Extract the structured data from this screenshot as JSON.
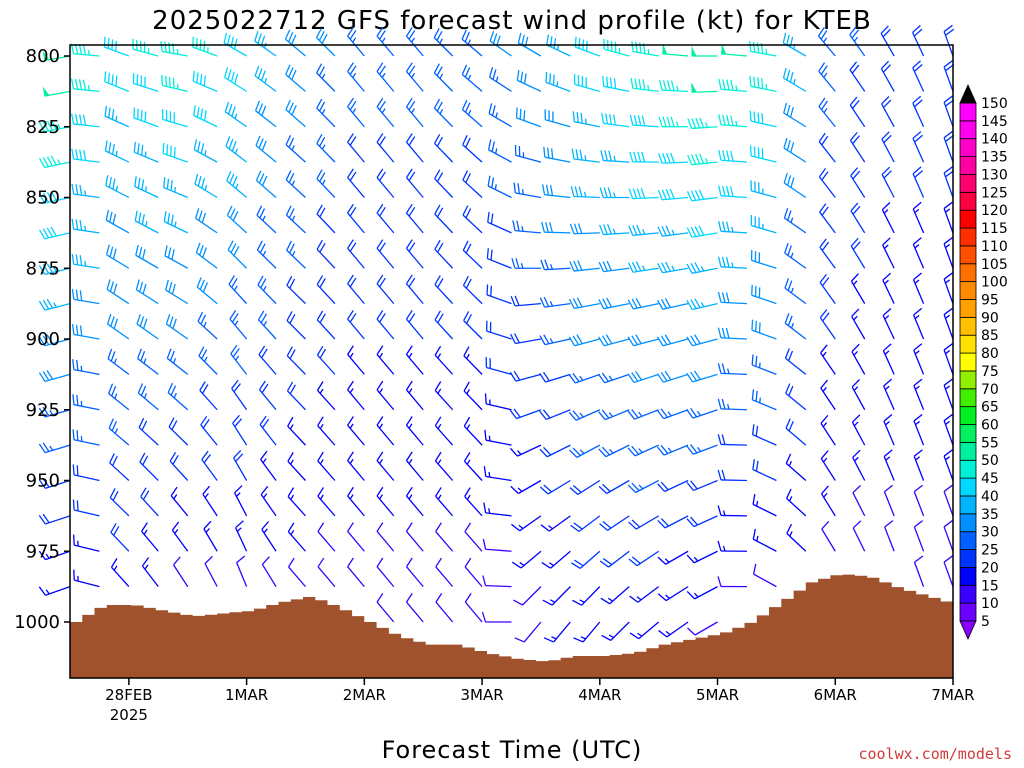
{
  "chart_data": {
    "type": "wind_profile_barbs",
    "title": "2025022712 GFS forecast wind profile (kt) for KTEB",
    "xlabel": "Forecast Time (UTC)",
    "ylabel": "",
    "credit": "coolwx.com/models",
    "y_axis": {
      "unit": "hPa",
      "range": [
        800,
        1018
      ],
      "inverted": true,
      "ticks": [
        800,
        825,
        850,
        875,
        900,
        925,
        950,
        975,
        1000
      ],
      "tick_labels": [
        "800",
        "825",
        "850",
        "875",
        "900",
        "925",
        "950",
        "975",
        "1000"
      ]
    },
    "x_axis": {
      "unit": "days since 2025-02-27 12UTC",
      "range": [
        0,
        7.5
      ],
      "ticks": [
        0.5,
        1.5,
        2.5,
        3.5,
        4.5,
        5.5,
        6.5,
        7.5
      ],
      "tick_labels": [
        "28FEB",
        "1MAR",
        "2MAR",
        "3MAR",
        "4MAR",
        "5MAR",
        "6MAR",
        "7MAR"
      ],
      "sub_label": "2025"
    },
    "colorbar": {
      "unit": "kt",
      "levels": [
        5,
        10,
        15,
        20,
        25,
        30,
        35,
        40,
        45,
        50,
        55,
        60,
        65,
        70,
        75,
        80,
        85,
        90,
        95,
        100,
        105,
        110,
        115,
        120,
        125,
        130,
        135,
        140,
        145,
        150
      ],
      "labels": [
        "5",
        "10",
        "15",
        "20",
        "25",
        "30",
        "35",
        "40",
        "45",
        "50",
        "55",
        "60",
        "65",
        "70",
        "75",
        "80",
        "85",
        "90",
        "95",
        "100",
        "105",
        "110",
        "115",
        "120",
        "125",
        "130",
        "135",
        "140",
        "145",
        "150"
      ],
      "colors": [
        "#8a00ff",
        "#6a00ff",
        "#3a00ff",
        "#0000ff",
        "#0034ff",
        "#0060ff",
        "#0090ff",
        "#00b4ff",
        "#00d8ff",
        "#00f0d8",
        "#00f0a0",
        "#00f060",
        "#00f020",
        "#40f000",
        "#90f000",
        "#ffff00",
        "#ffe000",
        "#ffc000",
        "#ffa000",
        "#ff8c00",
        "#ff7000",
        "#ff5000",
        "#ff3000",
        "#ff0000",
        "#ff0040",
        "#ff0070",
        "#ff00a0",
        "#ff00c8",
        "#ff00ee",
        "#ff00ff"
      ],
      "top_triangle": "#000000",
      "bottom_triangle": "#8a00ff"
    },
    "surface_pressure": {
      "note": "Brown fill below the surface pressure line",
      "fill_color": "#a0522d",
      "x": [
        0,
        0.25,
        0.5,
        0.75,
        1.0,
        1.25,
        1.5,
        1.75,
        2.0,
        2.25,
        2.5,
        2.75,
        3.0,
        3.25,
        3.5,
        3.75,
        4.0,
        4.25,
        4.5,
        4.75,
        5.0,
        5.25,
        5.5,
        5.75,
        6.0,
        6.25,
        6.5,
        6.75,
        7.0,
        7.25,
        7.5
      ],
      "p": [
        1000,
        994,
        994,
        996,
        998,
        997,
        996,
        993,
        991,
        995,
        1000,
        1005,
        1008,
        1008,
        1011,
        1013,
        1014,
        1012,
        1012,
        1011,
        1008,
        1006,
        1004,
        1000,
        993,
        986,
        983,
        984,
        988,
        991,
        994
      ]
    },
    "wind_profile": {
      "levels": [
        800,
        812.5,
        825,
        837.5,
        850,
        862.5,
        875,
        887.5,
        900,
        912.5,
        925,
        937.5,
        950,
        962.5,
        975,
        987.5,
        1000
      ],
      "x": [
        0,
        0.25,
        0.5,
        0.75,
        1.0,
        1.25,
        1.5,
        1.75,
        2.0,
        2.25,
        2.5,
        2.75,
        3.0,
        3.25,
        3.5,
        3.75,
        4.0,
        4.25,
        4.5,
        4.75,
        5.0,
        5.25,
        5.5,
        5.75,
        6.0,
        6.25,
        6.5,
        6.75,
        7.0,
        7.25,
        7.5
      ],
      "note": "Barbs point in direction wind blows from; speeds in kt. Representative values estimated from the figure.",
      "columns": [
        {
          "x": 0.0,
          "dir_800": 260,
          "spd_800": 50,
          "dir_1000": 250,
          "spd_1000": 10
        },
        {
          "x": 0.5,
          "dir_800": 290,
          "spd_800": 40,
          "dir_1000": 320,
          "spd_1000": 15
        },
        {
          "x": 1.0,
          "dir_800": 280,
          "spd_800": 45,
          "dir_1000": 330,
          "spd_1000": 10
        },
        {
          "x": 1.5,
          "dir_800": 300,
          "spd_800": 40,
          "dir_1000": 340,
          "spd_1000": 10
        },
        {
          "x": 2.0,
          "dir_800": 310,
          "spd_800": 30,
          "dir_1000": 320,
          "spd_1000": 10
        },
        {
          "x": 2.5,
          "dir_800": 320,
          "spd_800": 25,
          "dir_1000": 320,
          "spd_1000": 10
        },
        {
          "x": 3.0,
          "dir_800": 320,
          "spd_800": 25,
          "dir_1000": 320,
          "spd_1000": 10
        },
        {
          "x": 3.5,
          "dir_800": 310,
          "spd_800": 25,
          "dir_1000": 320,
          "spd_1000": 10
        },
        {
          "x": 4.0,
          "dir_800": 300,
          "spd_800": 30,
          "dir_1000": 220,
          "spd_1000": 10
        },
        {
          "x": 4.5,
          "dir_800": 290,
          "spd_800": 40,
          "dir_1000": 220,
          "spd_1000": 15
        },
        {
          "x": 5.0,
          "dir_800": 280,
          "spd_800": 45,
          "dir_1000": 230,
          "spd_1000": 15
        },
        {
          "x": 5.5,
          "dir_800": 270,
          "spd_800": 50,
          "dir_1000": 240,
          "spd_1000": 10
        },
        {
          "x": 6.0,
          "dir_800": 280,
          "spd_800": 45,
          "dir_1000": 300,
          "spd_1000": 10
        },
        {
          "x": 6.5,
          "dir_800": 320,
          "spd_800": 25,
          "dir_1000": 330,
          "spd_1000": 10
        },
        {
          "x": 7.0,
          "dir_800": 330,
          "spd_800": 20,
          "dir_1000": 340,
          "spd_1000": 10
        },
        {
          "x": 7.5,
          "dir_800": 340,
          "spd_800": 20,
          "dir_1000": 340,
          "spd_1000": 10
        }
      ]
    },
    "grid": false,
    "legend": "colorbar-right"
  }
}
